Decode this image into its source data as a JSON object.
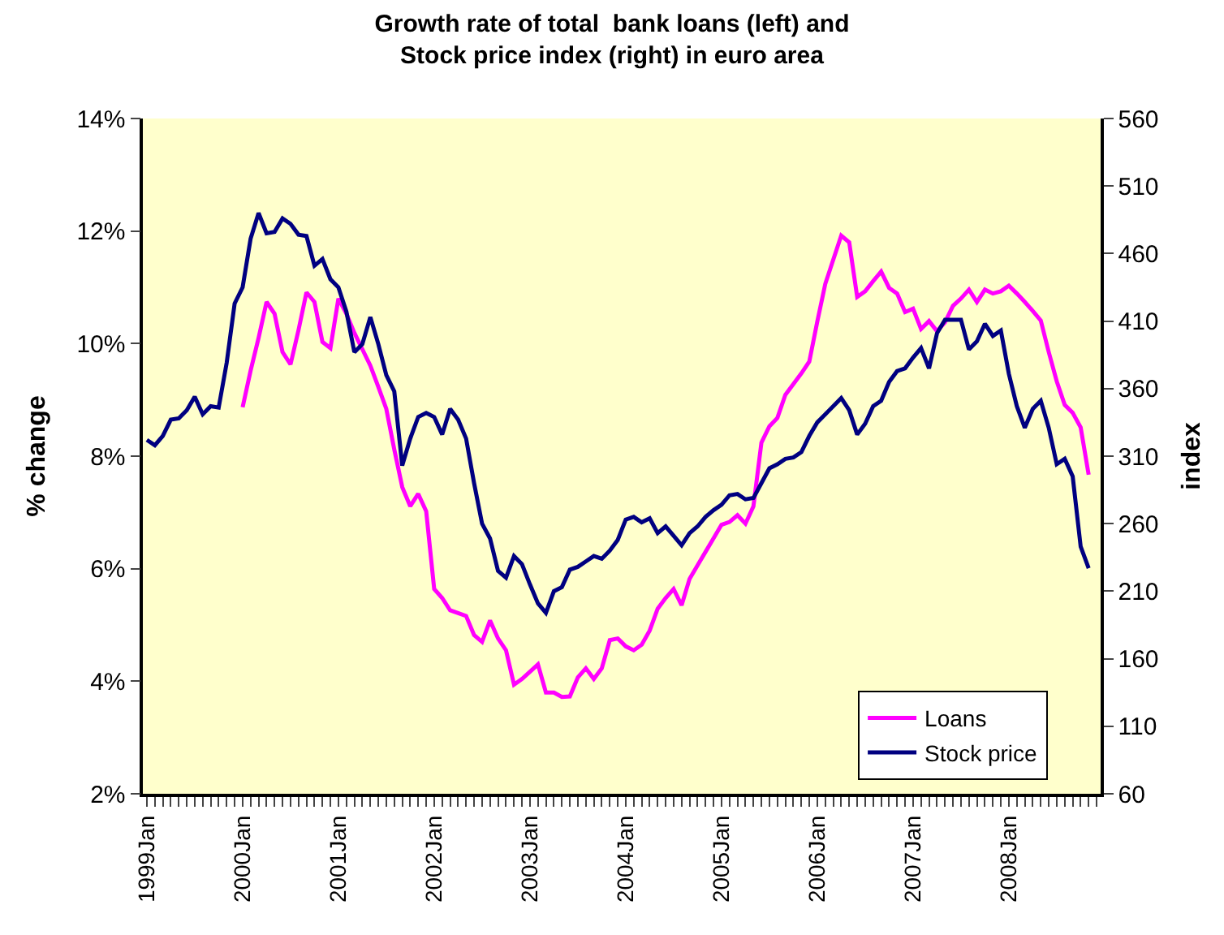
{
  "chart_data": {
    "type": "line",
    "title": "Growth rate of total  bank loans (left) and\nStock price index (right) in euro area",
    "ylabel": "% change",
    "y2label": "index",
    "categories": [
      "1999Jan",
      null,
      null,
      null,
      null,
      null,
      null,
      null,
      null,
      null,
      null,
      null,
      "2000Jan",
      null,
      null,
      null,
      null,
      null,
      null,
      null,
      null,
      null,
      null,
      null,
      "2001Jan",
      null,
      null,
      null,
      null,
      null,
      null,
      null,
      null,
      null,
      null,
      null,
      "2002Jan",
      null,
      null,
      null,
      null,
      null,
      null,
      null,
      null,
      null,
      null,
      null,
      "2003Jan",
      null,
      null,
      null,
      null,
      null,
      null,
      null,
      null,
      null,
      null,
      null,
      "2004Jan",
      null,
      null,
      null,
      null,
      null,
      null,
      null,
      null,
      null,
      null,
      null,
      "2005Jan",
      null,
      null,
      null,
      null,
      null,
      null,
      null,
      null,
      null,
      null,
      null,
      "2006Jan",
      null,
      null,
      null,
      null,
      null,
      null,
      null,
      null,
      null,
      null,
      null,
      "2007Jan",
      null,
      null,
      null,
      null,
      null,
      null,
      null,
      null,
      null,
      null,
      null,
      "2008Jan",
      null,
      null,
      null,
      null,
      null,
      null,
      null,
      null,
      null,
      null,
      null
    ],
    "series": [
      {
        "name": "Loans",
        "color": "#ff00ff",
        "values": [
          null,
          null,
          null,
          null,
          null,
          null,
          null,
          null,
          null,
          null,
          null,
          null,
          8.87,
          9.52,
          10.1,
          10.74,
          10.53,
          9.85,
          9.63,
          10.24,
          10.91,
          10.74,
          10.03,
          9.92,
          10.8,
          10.53,
          10.19,
          9.9,
          9.61,
          9.23,
          8.84,
          8.12,
          7.45,
          7.11,
          7.33,
          7.02,
          5.64,
          5.48,
          5.26,
          5.21,
          5.16,
          4.82,
          4.7,
          5.08,
          4.76,
          4.55,
          3.94,
          4.04,
          4.17,
          4.3,
          3.8,
          3.8,
          3.72,
          3.73,
          4.07,
          4.23,
          4.04,
          4.23,
          4.73,
          4.76,
          4.62,
          4.55,
          4.65,
          4.9,
          5.29,
          5.48,
          5.64,
          5.35,
          5.82,
          6.06,
          6.3,
          6.54,
          6.78,
          6.83,
          6.95,
          6.8,
          7.11,
          8.24,
          8.53,
          8.68,
          9.09,
          9.28,
          9.47,
          9.68,
          10.39,
          11.06,
          11.49,
          11.92,
          11.8,
          10.83,
          10.93,
          11.11,
          11.28,
          10.99,
          10.89,
          10.56,
          10.62,
          10.26,
          10.4,
          10.22,
          10.38,
          10.67,
          10.8,
          10.96,
          10.74,
          10.96,
          10.89,
          10.93,
          11.03,
          10.89,
          10.74,
          10.58,
          10.41,
          9.85,
          9.33,
          8.91,
          8.77,
          8.51,
          7.67,
          null
        ]
      },
      {
        "name": "Stock price",
        "color": "#000080",
        "axis": "y2",
        "values": [
          322,
          318,
          325,
          337,
          338,
          344,
          354,
          341,
          347,
          346,
          379,
          423,
          435,
          471,
          490,
          475,
          476,
          486,
          482,
          474,
          473,
          451,
          456,
          441,
          435,
          417,
          387,
          393,
          413,
          393,
          370,
          358,
          303,
          323,
          339,
          342,
          339,
          326,
          345,
          337,
          323,
          290,
          260,
          249,
          225,
          220,
          236,
          230,
          215,
          201,
          194,
          210,
          213,
          226,
          228,
          232,
          236,
          234,
          240,
          248,
          263,
          265,
          261,
          264,
          253,
          258,
          251,
          244,
          253,
          258,
          265,
          270,
          274,
          281,
          282,
          278,
          279,
          290,
          301,
          304,
          308,
          309,
          313,
          325,
          335,
          341,
          347,
          353,
          344,
          326,
          334,
          347,
          351,
          365,
          373,
          375,
          383,
          390,
          375,
          401,
          411,
          411,
          411,
          389,
          395,
          408,
          399,
          403,
          371,
          347,
          331,
          345,
          351,
          331,
          304,
          308,
          295,
          243,
          227,
          null
        ]
      }
    ],
    "ylim": [
      2,
      14
    ],
    "yticks": [
      {
        "value": 2,
        "label": "2%"
      },
      {
        "value": 4,
        "label": "4%"
      },
      {
        "value": 6,
        "label": "6%"
      },
      {
        "value": 8,
        "label": "8%"
      },
      {
        "value": 10,
        "label": "10%"
      },
      {
        "value": 12,
        "label": "12%"
      },
      {
        "value": 14,
        "label": "14%"
      }
    ],
    "y2lim": [
      60,
      560
    ],
    "y2ticks": [
      60,
      110,
      160,
      210,
      260,
      310,
      360,
      410,
      460,
      510,
      560
    ],
    "grid": false,
    "legend": "bottom right",
    "marker": "none",
    "line_style": "solid"
  }
}
